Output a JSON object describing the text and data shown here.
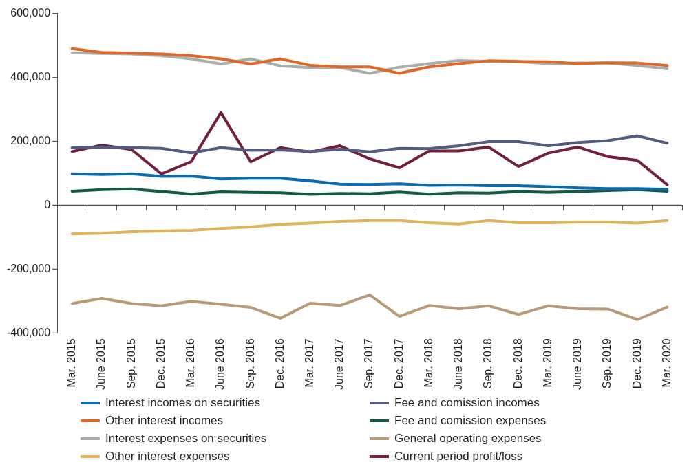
{
  "chart_data": {
    "type": "line",
    "categories": [
      "Mar. 2015",
      "June 2015",
      "Sep. 2015",
      "Dec. 2015",
      "Mar. 2016",
      "June 2016",
      "Sep. 2016",
      "Dec. 2016",
      "Mar. 2017",
      "June 2017",
      "Sep. 2017",
      "Dec. 2017",
      "Mar. 2018",
      "June 2018",
      "Sep. 2018",
      "Dec. 2018",
      "Mar. 2019",
      "June 2019",
      "Sep. 2019",
      "Dec. 2019",
      "Mar. 2020"
    ],
    "series": [
      {
        "name": "Interest incomes on securities",
        "color": "#0a6aad",
        "values": [
          98000,
          96000,
          98000,
          90000,
          91000,
          82000,
          84000,
          84000,
          76000,
          66000,
          65000,
          67000,
          62000,
          63000,
          61000,
          61000,
          58000,
          54000,
          52000,
          52000,
          50000
        ]
      },
      {
        "name": "Fee and comission incomes",
        "color": "#545a80",
        "values": [
          180000,
          182000,
          180000,
          178000,
          164000,
          180000,
          172000,
          173000,
          168000,
          175000,
          167000,
          178000,
          177000,
          186000,
          199000,
          199000,
          186000,
          196000,
          202000,
          217000,
          194000
        ]
      },
      {
        "name": "Other interest incomes",
        "color": "#e0662a",
        "values": [
          490000,
          478000,
          476000,
          473000,
          468000,
          458000,
          442000,
          458000,
          438000,
          433000,
          433000,
          413000,
          433000,
          443000,
          452000,
          450000,
          449000,
          443000,
          446000,
          445000,
          437000
        ]
      },
      {
        "name": "Fee and comission expenses",
        "color": "#14584a",
        "values": [
          44000,
          49000,
          51000,
          43000,
          35000,
          42000,
          40000,
          39000,
          34000,
          37000,
          36000,
          41000,
          35000,
          39000,
          38000,
          43000,
          40000,
          43000,
          46000,
          49000,
          44000
        ]
      },
      {
        "name": "Interest expenses on securities",
        "color": "#a8adad",
        "values": [
          477000,
          475000,
          473000,
          468000,
          458000,
          442000,
          458000,
          436000,
          431000,
          431000,
          413000,
          432000,
          443000,
          453000,
          450000,
          449000,
          443000,
          445000,
          445000,
          437000,
          427000
        ]
      },
      {
        "name": "General operating expenses",
        "color": "#b99a78",
        "values": [
          -308000,
          -292000,
          -308000,
          -315000,
          -301000,
          -310000,
          -320000,
          -354000,
          -307000,
          -314000,
          -281000,
          -348000,
          -314000,
          -324000,
          -315000,
          -342000,
          -315000,
          -324000,
          -325000,
          -358000,
          -319000
        ]
      },
      {
        "name": "Other interest expenses",
        "color": "#e0b25e",
        "values": [
          -90000,
          -88000,
          -83000,
          -81000,
          -79000,
          -73000,
          -68000,
          -60000,
          -56000,
          -51000,
          -48000,
          -48000,
          -55000,
          -59000,
          -48000,
          -55000,
          -55000,
          -53000,
          -53000,
          -56000,
          -48000
        ]
      },
      {
        "name": "Current period profit/loss",
        "color": "#731f3d",
        "values": [
          168000,
          188000,
          174000,
          98000,
          136000,
          290000,
          136000,
          180000,
          166000,
          186000,
          145000,
          117000,
          170000,
          170000,
          182000,
          121000,
          163000,
          182000,
          152000,
          140000,
          64000
        ]
      }
    ],
    "ylim": [
      -400000,
      600000
    ],
    "yticks": [
      {
        "value": -400000,
        "label": "-400,000"
      },
      {
        "value": -200000,
        "label": "-200,000"
      },
      0,
      {
        "value": 200000,
        "label": "200,000"
      },
      {
        "value": 400000,
        "label": "400,000"
      },
      {
        "value": 600000,
        "label": "600,000"
      }
    ],
    "ref_lines": [
      {
        "axis": "y",
        "value": 0,
        "color": "#555555"
      }
    ],
    "grid": false,
    "legend": "bottom",
    "marker": "none",
    "line_style": "solid"
  }
}
